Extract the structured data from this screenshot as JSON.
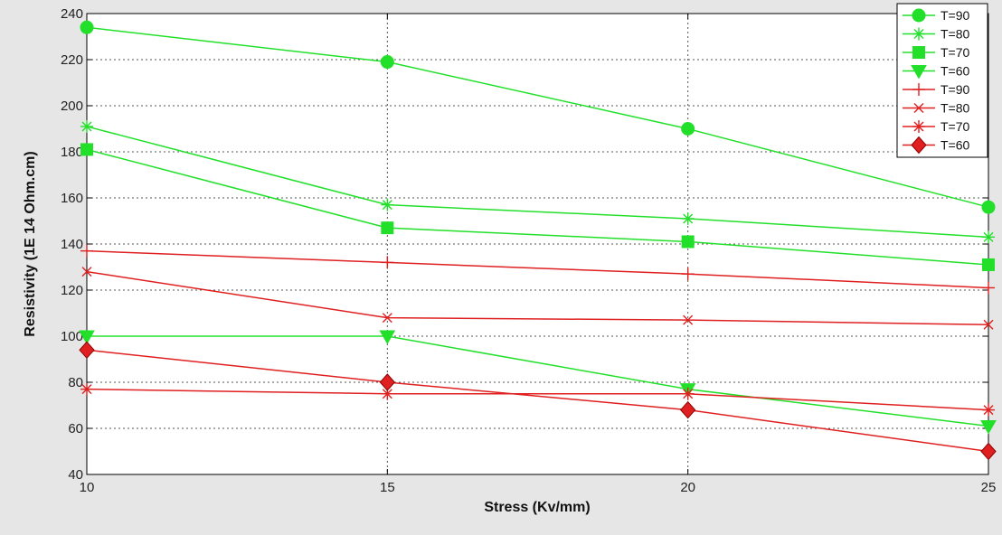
{
  "chart_data": {
    "type": "line",
    "xlabel": "Stress (Kv/mm)",
    "ylabel": "Resistivity  (1E 14  Ohm.cm)",
    "xlim": [
      10,
      25
    ],
    "ylim": [
      40,
      240
    ],
    "xticks": [
      10,
      15,
      20,
      25
    ],
    "yticks": [
      40,
      60,
      80,
      100,
      120,
      140,
      160,
      180,
      200,
      220,
      240
    ],
    "grid": true,
    "legend_position": "top-right",
    "x": [
      10,
      15,
      20,
      25
    ],
    "series": [
      {
        "name": "T=90",
        "color": "#22e02a",
        "marker": "circle",
        "values": [
          234,
          219,
          190,
          156
        ]
      },
      {
        "name": "T=80",
        "color": "#22e02a",
        "marker": "asterisk",
        "values": [
          191,
          157,
          151,
          143
        ]
      },
      {
        "name": "T=70",
        "color": "#22e02a",
        "marker": "square",
        "values": [
          181,
          147,
          141,
          131
        ]
      },
      {
        "name": "T=60",
        "color": "#22e02a",
        "marker": "triangle-down",
        "values": [
          100,
          100,
          77,
          61
        ]
      },
      {
        "name": "T=90",
        "color": "#e02020",
        "marker": "plus",
        "values": [
          137,
          132,
          127,
          121
        ]
      },
      {
        "name": "T=80",
        "color": "#e02020",
        "marker": "x",
        "values": [
          128,
          108,
          107,
          105
        ]
      },
      {
        "name": "T=70",
        "color": "#e02020",
        "marker": "asterisk",
        "values": [
          77,
          75,
          75,
          68
        ]
      },
      {
        "name": "T=60",
        "color": "#e02020",
        "marker": "diamond",
        "values": [
          94,
          80,
          68,
          50
        ]
      }
    ]
  }
}
